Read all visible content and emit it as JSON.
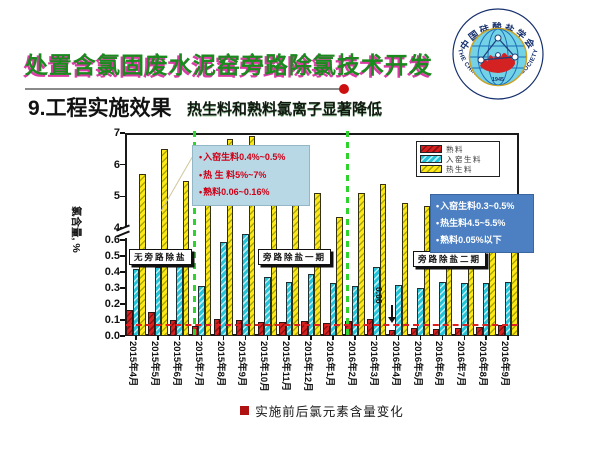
{
  "slide": {
    "title": "处置含氯固废水泥窑旁路除氯技术开发",
    "section_title": "9.工程实施效果",
    "section_subtitle": "热生料和熟料氯离子显著降低",
    "caption": "实施前后氯元素含量变化",
    "logo": {
      "top_text": "中国硅酸盐学会",
      "bottom_text": "THE CHINESE CERAMIC SOCIETY",
      "year": "1945"
    },
    "colors": {
      "title_green": "#1a8a1e",
      "title_magenta": "#d93aa4",
      "divider_green": "#2ed32e",
      "reference_red": "#e02020",
      "callout_light_bg": "#b7d8e4",
      "callout_dark_bg": "#4c80c2"
    }
  },
  "chart_data": {
    "type": "bar",
    "ylabel": "氯含量, %",
    "categories": [
      "2015年4月",
      "2015年5月",
      "2015年6月",
      "2015年7月",
      "2015年8月",
      "2015年9月",
      "2015年10月",
      "2015年11月",
      "2015年12月",
      "2016年1月",
      "2016年2月",
      "2016年3月",
      "2016年4月",
      "2016年5月",
      "2016年6月",
      "2016年7月",
      "2016年8月",
      "2016年9月"
    ],
    "series": [
      {
        "name": "熟料",
        "color": "#d62121",
        "values": [
          0.16,
          0.15,
          0.1,
          0.06,
          0.105,
          0.1,
          0.085,
          0.09,
          0.095,
          0.08,
          0.095,
          0.105,
          0.04,
          0.05,
          0.045,
          0.05,
          0.055,
          0.07
        ]
      },
      {
        "name": "入窑生料",
        "color": "#25c3d8",
        "values": [
          0.42,
          0.43,
          0.44,
          0.31,
          0.59,
          0.64,
          0.37,
          0.34,
          0.385,
          0.33,
          0.31,
          0.43,
          0.32,
          0.3,
          0.34,
          0.33,
          0.33,
          0.34
        ]
      },
      {
        "name": "热生料",
        "color": "#ffe81a",
        "values": [
          5.7,
          6.5,
          5.5,
          5.6,
          6.8,
          6.9,
          5.0,
          5.5,
          5.1,
          4.35,
          5.1,
          5.4,
          4.8,
          4.7,
          4.9,
          5.0,
          4.8,
          4.5
        ]
      }
    ],
    "y_axis_lower": {
      "min": 0.0,
      "max": 0.6,
      "ticks": [
        "0.0",
        "0.1",
        "0.2",
        "0.3",
        "0.4",
        "0.5",
        "0.6"
      ]
    },
    "y_axis_upper": {
      "min": 4,
      "max": 7,
      "ticks": [
        "4",
        "5",
        "6",
        "7"
      ]
    },
    "axis_break": true,
    "grid": false,
    "legend_position": "top-right",
    "reference_line": {
      "value": 0.06,
      "label": "0.06"
    },
    "dividers_after_index": [
      2,
      9
    ],
    "sections": [
      {
        "label": "无旁路除盐"
      },
      {
        "label": "旁路除盐一期"
      },
      {
        "label": "旁路除盐二期"
      }
    ],
    "annotations": [
      {
        "style": "light",
        "lines": [
          "入窑生料0.4%~0.5%",
          "热 生 料5%~7%",
          "熟料0.06~0.16%"
        ]
      },
      {
        "style": "dark",
        "lines": [
          "入窑生料0.3~0.5%",
          "热生料4.5~5.5%",
          "熟料0.05%以下"
        ]
      }
    ]
  }
}
